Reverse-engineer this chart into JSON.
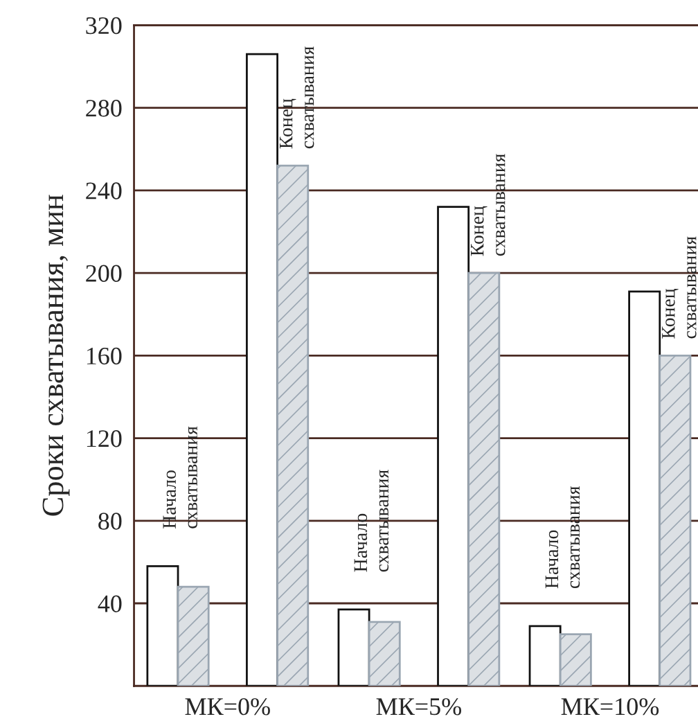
{
  "chart_data": {
    "type": "bar",
    "ylabel": "Сроки схватывания, мин",
    "categories": [
      "МК=0%",
      "МК=5%",
      "МК=10%"
    ],
    "series": [
      {
        "color": "#ffffff",
        "values": [
          58,
          37,
          29
        ]
      },
      {
        "color": "#9aa6b2",
        "values": [
          48,
          31,
          25
        ]
      },
      {
        "color": "#ffffff",
        "values": [
          306,
          232,
          191
        ]
      },
      {
        "color": "#9aa6b2",
        "values": [
          252,
          200,
          160
        ]
      }
    ],
    "ylim": [
      0,
      320
    ],
    "yticks": [
      40,
      80,
      120,
      160,
      200,
      240,
      280,
      320
    ],
    "grid": "y",
    "annotations": [
      "Начало\nсхватывания",
      "Конец\nсхватывания",
      "Начало\nсхватывания",
      "Конец\nсхватывания",
      "Начало\nсхватывания",
      "Конец\nсхватывания"
    ]
  }
}
